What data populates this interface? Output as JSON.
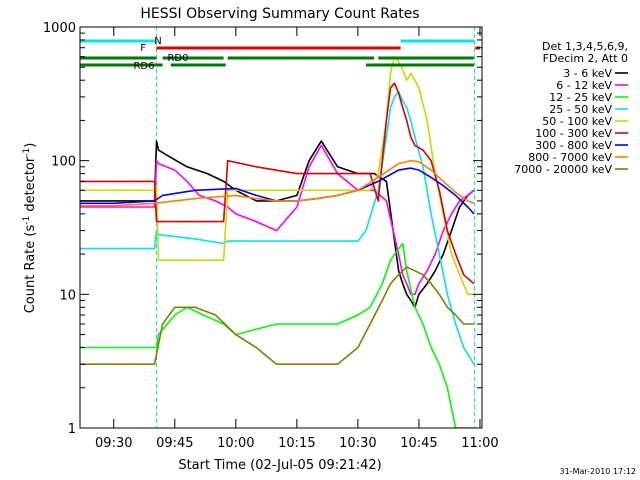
{
  "chart_data": {
    "type": "line",
    "title": "HESSI Observing Summary Count Rates",
    "xlabel": "Start Time (02-Jul-05 09:21:42)",
    "ylabel_main": "Count Rate (s",
    "ylabel_sup": "-1",
    "ylabel_mid": " detector",
    "ylabel_end": ")",
    "y_scale": "log",
    "ylim": [
      1,
      1000
    ],
    "xlim": [
      "09:21:42",
      "11:00:30"
    ],
    "y_ticks": [
      "1",
      "10",
      "100",
      "1000"
    ],
    "x_ticks": [
      {
        "t": "09:30",
        "label": "09:30"
      },
      {
        "t": "09:45",
        "label": "09:45"
      },
      {
        "t": "10:00",
        "label": "10:00"
      },
      {
        "t": "10:15",
        "label": "10:15"
      },
      {
        "t": "10:30",
        "label": "10:30"
      },
      {
        "t": "10:45",
        "label": "10:45"
      },
      {
        "t": "11:00",
        "label": "11:00"
      }
    ],
    "legend_header": [
      "Det 1,3,4,5,6,9,",
      "FDecim 2, Att 0"
    ],
    "legend_placement": "right",
    "footer": "31-Mar-2010 17:12",
    "vlines": [
      "09:40:30",
      "10:58:40"
    ],
    "flags": [
      {
        "label": "N",
        "color": "#00e5ee",
        "segments": [
          [
            "09:21:42",
            "09:40:30"
          ],
          [
            "10:40:30",
            "10:58:40"
          ]
        ]
      },
      {
        "label": "F",
        "color": "#e00000",
        "segments": [
          [
            "09:40:30",
            "10:40:30"
          ],
          [
            "10:58:50",
            "11:00:00"
          ]
        ]
      },
      {
        "label": "RD0",
        "color": "#007a00",
        "segments": [
          [
            "09:21:42",
            "09:40:30"
          ],
          [
            "09:42:00",
            "09:57:00"
          ],
          [
            "09:58:00",
            "10:34:00"
          ],
          [
            "10:35:00",
            "10:58:30"
          ]
        ]
      },
      {
        "label": "RD6",
        "color": "#007a00",
        "segments": [
          [
            "09:21:42",
            "09:42:00"
          ],
          [
            "09:44:00",
            "09:57:30"
          ],
          [
            "10:32:00",
            "10:58:30"
          ]
        ]
      }
    ],
    "series": [
      {
        "name": "3 - 6 keV",
        "color": "#000000",
        "x": [
          "09:21:42",
          "09:35",
          "09:40",
          "09:40:30",
          "09:41",
          "09:43",
          "09:48",
          "09:53",
          "09:57",
          "10:00",
          "10:05",
          "10:10",
          "10:15",
          "10:18",
          "10:21",
          "10:25",
          "10:30",
          "10:34",
          "10:37",
          "10:40",
          "10:41",
          "10:42",
          "10:43",
          "10:44",
          "10:45",
          "10:47",
          "10:49",
          "10:51",
          "10:53",
          "10:55",
          "10:57",
          "10:58:30"
        ],
        "values": [
          50,
          50,
          50,
          140,
          120,
          110,
          90,
          80,
          70,
          60,
          50,
          50,
          55,
          100,
          140,
          90,
          80,
          80,
          70,
          15,
          12,
          10,
          9,
          8,
          10,
          12,
          15,
          20,
          30,
          45,
          55,
          60
        ]
      },
      {
        "name": "6 - 12 keV",
        "color": "#ff00ff",
        "x": [
          "09:21:42",
          "09:35",
          "09:40",
          "09:40:30",
          "09:41",
          "09:45",
          "09:48",
          "09:51",
          "09:55",
          "09:58",
          "10:00",
          "10:05",
          "10:10",
          "10:15",
          "10:18",
          "10:21",
          "10:25",
          "10:30",
          "10:34",
          "10:37",
          "10:40",
          "10:41",
          "10:42",
          "10:43",
          "10:44",
          "10:45",
          "10:47",
          "10:49",
          "10:51",
          "10:53",
          "10:55",
          "10:57",
          "10:58:30"
        ],
        "values": [
          45,
          45,
          45,
          100,
          95,
          85,
          70,
          55,
          50,
          45,
          40,
          35,
          30,
          45,
          90,
          130,
          80,
          60,
          60,
          50,
          20,
          14,
          12,
          10,
          10,
          12,
          15,
          20,
          30,
          40,
          50,
          55,
          60
        ]
      },
      {
        "name": "12 - 25 keV",
        "color": "#00ff00",
        "x": [
          "09:21:42",
          "09:30",
          "09:40",
          "09:40:30",
          "09:41",
          "09:45",
          "09:48",
          "09:52",
          "09:57",
          "10:00",
          "10:10",
          "10:20",
          "10:25",
          "10:30",
          "10:33",
          "10:36",
          "10:38",
          "10:40",
          "10:41",
          "10:42",
          "10:44",
          "10:46",
          "10:48",
          "10:50",
          "10:52",
          "10:54",
          "10:56",
          "10:58:30"
        ],
        "values": [
          4,
          4,
          4,
          4,
          5,
          7,
          8,
          7,
          6,
          5,
          6,
          6,
          6,
          7,
          8,
          12,
          18,
          22,
          24,
          15,
          8,
          6,
          4,
          3,
          2,
          1,
          1,
          1
        ]
      },
      {
        "name": "25 - 50 keV",
        "color": "#00e5ee",
        "x": [
          "09:21:42",
          "09:35",
          "09:40",
          "09:40:30",
          "09:41",
          "09:50",
          "09:57",
          "09:58",
          "10:00",
          "10:10",
          "10:20",
          "10:30",
          "10:32",
          "10:35",
          "10:37",
          "10:38",
          "10:39",
          "10:40",
          "10:41",
          "10:42",
          "10:43",
          "10:44",
          "10:46",
          "10:48",
          "10:50",
          "10:52",
          "10:54",
          "10:56",
          "10:58:30"
        ],
        "values": [
          22,
          22,
          22,
          30,
          28,
          26,
          24,
          25,
          25,
          25,
          25,
          25,
          30,
          60,
          150,
          250,
          300,
          330,
          280,
          250,
          200,
          150,
          90,
          40,
          20,
          10,
          6,
          4,
          3
        ]
      },
      {
        "name": "50 - 100 keV",
        "color": "#d4d400",
        "x": [
          "09:21:42",
          "09:35",
          "09:40",
          "09:40:30",
          "09:41",
          "09:50",
          "09:57",
          "09:58",
          "10:05",
          "10:15",
          "10:25",
          "10:30",
          "10:33",
          "10:35",
          "10:37",
          "10:38",
          "10:39",
          "10:40",
          "10:41",
          "10:42",
          "10:43",
          "10:44",
          "10:45",
          "10:47",
          "10:49",
          "10:51",
          "10:53",
          "10:55",
          "10:57",
          "10:58:30"
        ],
        "values": [
          60,
          60,
          60,
          65,
          18,
          18,
          18,
          60,
          60,
          60,
          60,
          60,
          60,
          80,
          200,
          450,
          600,
          550,
          480,
          400,
          450,
          400,
          350,
          200,
          80,
          40,
          20,
          14,
          10,
          10
        ]
      },
      {
        "name": "100 - 300 keV",
        "color": "#e00000",
        "x": [
          "09:21:42",
          "09:35",
          "09:40",
          "09:40:30",
          "09:41",
          "09:50",
          "09:57",
          "09:58",
          "10:05",
          "10:15",
          "10:25",
          "10:30",
          "10:33",
          "10:35",
          "10:37",
          "10:38",
          "10:39",
          "10:40",
          "10:41",
          "10:42",
          "10:43",
          "10:44",
          "10:46",
          "10:48",
          "10:50",
          "10:52",
          "10:54",
          "10:56",
          "10:58:30"
        ],
        "values": [
          70,
          70,
          70,
          35,
          35,
          35,
          35,
          100,
          90,
          80,
          80,
          80,
          80,
          50,
          200,
          350,
          380,
          320,
          250,
          200,
          150,
          130,
          120,
          100,
          60,
          30,
          20,
          14,
          12
        ]
      },
      {
        "name": "300 - 800 keV",
        "color": "#0000ff",
        "x": [
          "09:21:42",
          "09:30",
          "09:40",
          "09:42",
          "09:50",
          "10:00",
          "10:05",
          "10:10",
          "10:15",
          "10:20",
          "10:25",
          "10:30",
          "10:35",
          "10:40",
          "10:43",
          "10:45",
          "10:48",
          "10:51",
          "10:54",
          "10:57",
          "10:58:30"
        ],
        "values": [
          48,
          48,
          50,
          55,
          60,
          62,
          55,
          50,
          50,
          52,
          55,
          60,
          70,
          85,
          88,
          85,
          75,
          65,
          55,
          45,
          40
        ]
      },
      {
        "name": "800 - 7000 keV",
        "color": "#ff8000",
        "x": [
          "09:21:42",
          "09:30",
          "09:40",
          "09:45",
          "09:50",
          "10:00",
          "10:05",
          "10:10",
          "10:15",
          "10:20",
          "10:25",
          "10:30",
          "10:35",
          "10:40",
          "10:43",
          "10:45",
          "10:48",
          "10:51",
          "10:54",
          "10:57",
          "10:58:30"
        ],
        "values": [
          46,
          46,
          48,
          50,
          52,
          55,
          52,
          50,
          50,
          52,
          55,
          60,
          75,
          95,
          100,
          98,
          85,
          70,
          58,
          50,
          48
        ]
      },
      {
        "name": "7000 - 20000 keV",
        "color": "#808000",
        "x": [
          "09:21:42",
          "09:30",
          "09:40",
          "09:42",
          "09:45",
          "09:50",
          "09:55",
          "10:00",
          "10:05",
          "10:10",
          "10:15",
          "10:20",
          "10:25",
          "10:30",
          "10:33",
          "10:36",
          "10:38",
          "10:40",
          "10:42",
          "10:44",
          "10:46",
          "10:48",
          "10:50",
          "10:52",
          "10:54",
          "10:56",
          "10:58:30"
        ],
        "values": [
          3,
          3,
          3,
          6,
          8,
          8,
          7,
          5,
          4,
          3,
          3,
          3,
          3,
          4,
          6,
          9,
          12,
          14,
          16,
          15,
          14,
          12,
          10,
          8,
          7,
          6,
          6
        ]
      }
    ]
  }
}
